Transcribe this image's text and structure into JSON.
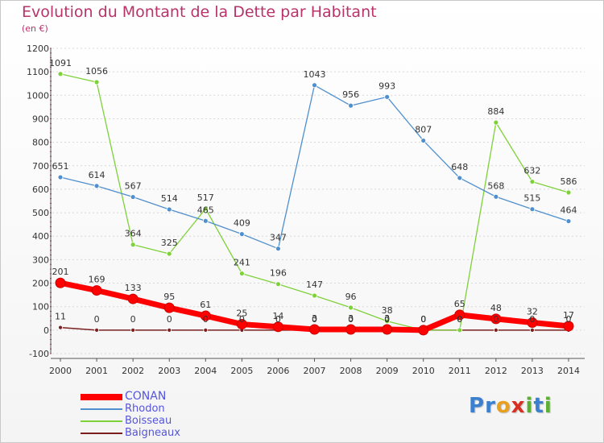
{
  "header": {
    "title": "Evolution du Montant de la Dette par Habitant",
    "subtitle": "(en €)"
  },
  "colors": {
    "title": "#b8336a",
    "axis": "#555555",
    "grid_dash": "#dddddd",
    "legend_text": "#5555dd"
  },
  "chart_data": {
    "type": "line",
    "title": "Evolution du Montant de la Dette par Habitant",
    "subtitle": "(en €)",
    "xlabel": "",
    "ylabel": "",
    "x": [
      "2000",
      "2001",
      "2002",
      "2003",
      "2004",
      "2005",
      "2006",
      "2007",
      "2008",
      "2009",
      "2010",
      "2011",
      "2012",
      "2013",
      "2014"
    ],
    "ylim": [
      -100,
      1200
    ],
    "yticks": [
      "-100",
      "0",
      "100",
      "200",
      "300",
      "400",
      "500",
      "600",
      "700",
      "800",
      "900",
      "1000",
      "1100",
      "1200"
    ],
    "legend_position": "bottom-left",
    "series": [
      {
        "name": "CONAN",
        "color": "#ff0000",
        "values": [
          201,
          169,
          133,
          95,
          61,
          25,
          14,
          3,
          3,
          3,
          0,
          65,
          48,
          32,
          17
        ],
        "labels": [
          "201",
          "169",
          "133",
          "95",
          "61",
          "25",
          "14",
          "3",
          "3",
          "3",
          "0",
          "65",
          "48",
          "32",
          "17"
        ]
      },
      {
        "name": "Rhodon",
        "color": "#4f8fce",
        "values": [
          651,
          614,
          567,
          514,
          465,
          409,
          347,
          1043,
          956,
          993,
          807,
          648,
          568,
          515,
          464
        ],
        "labels": [
          "651",
          "614",
          "567",
          "514",
          "465",
          "409",
          "347",
          "1043",
          "956",
          "993",
          "807",
          "648",
          "568",
          "515",
          "464"
        ]
      },
      {
        "name": "Boisseau",
        "color": "#7fd13a",
        "values": [
          1091,
          1056,
          364,
          325,
          517,
          241,
          196,
          147,
          96,
          38,
          0,
          0,
          884,
          632,
          586
        ],
        "labels": [
          "1091",
          "1056",
          "364",
          "325",
          "517",
          "241",
          "196",
          "147",
          "96",
          "38",
          "0",
          "0",
          "884",
          "632",
          "586"
        ]
      },
      {
        "name": "Baigneaux",
        "color": "#7a1f1f",
        "values": [
          11,
          0,
          0,
          0,
          0,
          0,
          0,
          0,
          0,
          0,
          0,
          0,
          0,
          0,
          0
        ],
        "labels": [
          "11",
          "0",
          "0",
          "0",
          "0",
          "0",
          "0",
          "0",
          "0",
          "0",
          "0",
          "0",
          "0",
          "0",
          "0"
        ]
      }
    ]
  },
  "legend": {
    "items": [
      {
        "name": "CONAN"
      },
      {
        "name": "Rhodon"
      },
      {
        "name": "Boisseau"
      },
      {
        "name": "Baigneaux"
      }
    ]
  },
  "logo": {
    "letters": [
      "P",
      "r",
      "o",
      "x",
      "i",
      "t",
      "i"
    ],
    "letter_colors": [
      "#3a7fd0",
      "#3a7fd0",
      "#e8a020",
      "#d83020",
      "#5ab030",
      "#3a7fd0",
      "#5ab030"
    ]
  }
}
